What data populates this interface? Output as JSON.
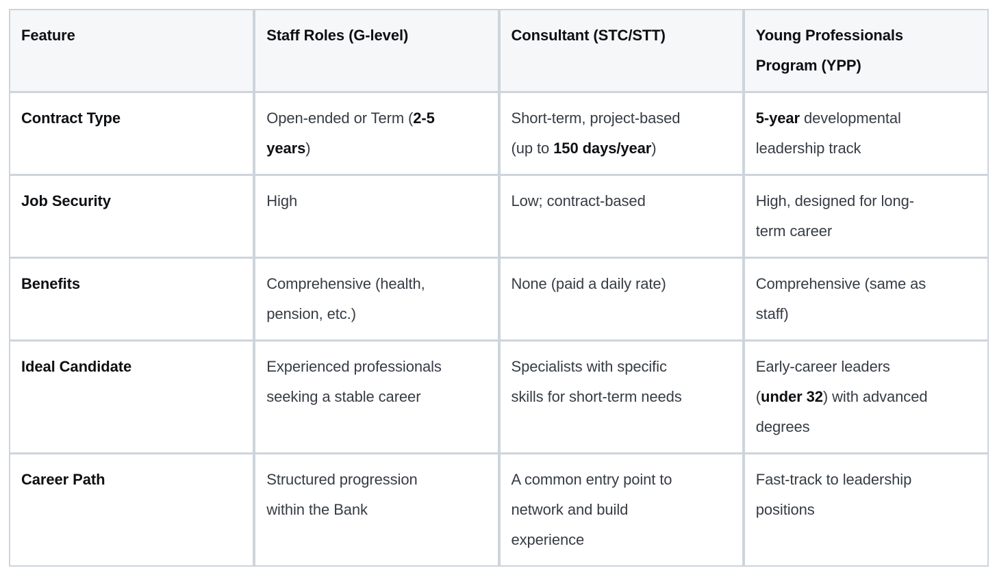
{
  "colors": {
    "border": "#cdd4dc",
    "header_bg": "#f6f7f9",
    "text": "#363c44",
    "bold_text": "#0d0f12",
    "page_bg": "#ffffff"
  },
  "table": {
    "columns": [
      "Feature",
      "Staff Roles (G-level)",
      "Consultant (STC/STT)",
      "Young Professionals\nProgram (YPP)"
    ],
    "rows": [
      {
        "cells": [
          [
            {
              "t": "Contract Type",
              "b": true
            }
          ],
          [
            {
              "t": "Open-ended or Term (",
              "b": false
            },
            {
              "t": "2-5\nyears",
              "b": true
            },
            {
              "t": ")",
              "b": false
            }
          ],
          [
            {
              "t": "Short-term, project-based\n(up to ",
              "b": false
            },
            {
              "t": "150 days/year",
              "b": true
            },
            {
              "t": ")",
              "b": false
            }
          ],
          [
            {
              "t": "5-year",
              "b": true
            },
            {
              "t": " developmental\nleadership track",
              "b": false
            }
          ]
        ]
      },
      {
        "cells": [
          [
            {
              "t": "Job Security",
              "b": true
            }
          ],
          [
            {
              "t": "High",
              "b": false
            }
          ],
          [
            {
              "t": "Low; contract-based",
              "b": false
            }
          ],
          [
            {
              "t": "High, designed for long-\nterm career",
              "b": false
            }
          ]
        ]
      },
      {
        "cells": [
          [
            {
              "t": "Benefits",
              "b": true
            }
          ],
          [
            {
              "t": "Comprehensive (health,\npension, etc.)",
              "b": false
            }
          ],
          [
            {
              "t": "None (paid a daily rate)",
              "b": false
            }
          ],
          [
            {
              "t": "Comprehensive (same as\nstaff)",
              "b": false
            }
          ]
        ]
      },
      {
        "cells": [
          [
            {
              "t": "Ideal Candidate",
              "b": true
            }
          ],
          [
            {
              "t": "Experienced professionals\nseeking a stable career",
              "b": false
            }
          ],
          [
            {
              "t": "Specialists with specific\nskills for short-term needs",
              "b": false
            }
          ],
          [
            {
              "t": "Early-career leaders\n(",
              "b": false
            },
            {
              "t": "under 32",
              "b": true
            },
            {
              "t": ") with advanced\ndegrees",
              "b": false
            }
          ]
        ]
      },
      {
        "cells": [
          [
            {
              "t": "Career Path",
              "b": true
            }
          ],
          [
            {
              "t": "Structured progression\nwithin the Bank",
              "b": false
            }
          ],
          [
            {
              "t": "A common entry point to\nnetwork and build\nexperience",
              "b": false
            }
          ],
          [
            {
              "t": "Fast-track to leadership\npositions",
              "b": false
            }
          ]
        ]
      }
    ]
  }
}
